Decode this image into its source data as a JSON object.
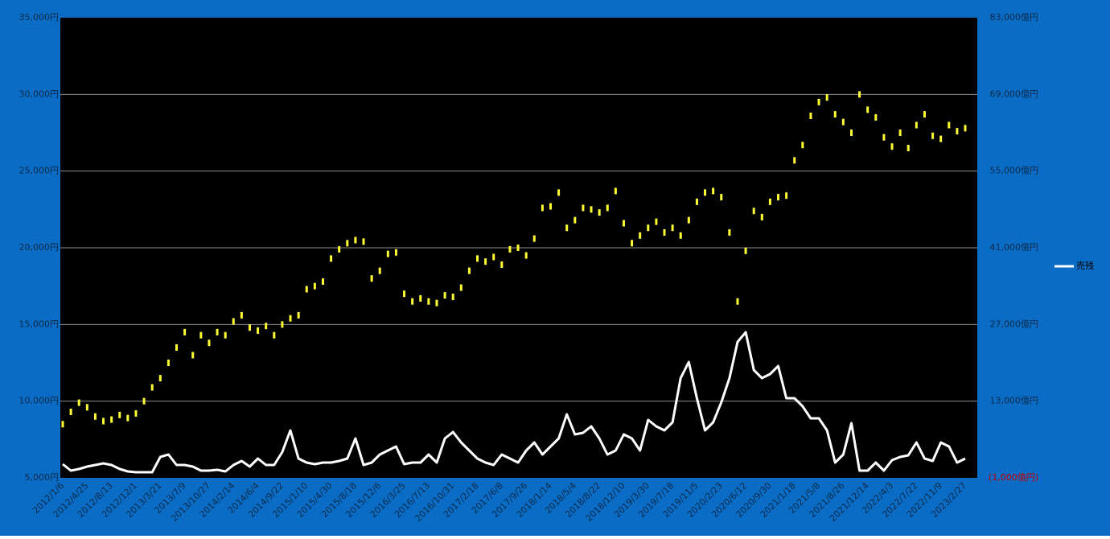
{
  "chart_data": {
    "type": "candle-line",
    "categories": [
      "2012/1/6",
      null,
      null,
      "2012/4/25",
      null,
      null,
      "2012/8/13",
      null,
      null,
      "2012/12/1",
      null,
      null,
      "2013/3/21",
      null,
      null,
      "2013/7/9",
      null,
      null,
      "2013/10/27",
      null,
      null,
      "2014/2/14",
      null,
      null,
      "2014/6/4",
      null,
      null,
      "2014/9/22",
      null,
      null,
      "2015/1/10",
      null,
      null,
      "2015/4/30",
      null,
      null,
      "2015/8/18",
      null,
      null,
      "2015/12/6",
      null,
      null,
      "2016/3/25",
      null,
      null,
      "2016/7/13",
      null,
      null,
      "2016/10/31",
      null,
      null,
      "2017/2/18",
      null,
      null,
      "2017/6/8",
      null,
      null,
      "2017/9/26",
      null,
      null,
      "2018/1/14",
      null,
      null,
      "2018/5/4",
      null,
      null,
      "2018/8/22",
      null,
      null,
      "2018/12/10",
      null,
      null,
      "2019/3/30",
      null,
      null,
      "2019/7/18",
      null,
      null,
      "2019/11/5",
      null,
      null,
      "2020/2/23",
      null,
      null,
      "2020/6/12",
      null,
      null,
      "2020/9/30",
      null,
      null,
      "2021/1/18",
      null,
      null,
      "2021/5/8",
      null,
      null,
      "2021/8/26",
      null,
      null,
      "2021/12/14",
      null,
      null,
      "2022/4/3",
      null,
      null,
      "2022/7/22",
      null,
      null,
      "2022/11/9",
      null,
      null,
      "2023/2/27"
    ],
    "series": [
      {
        "color": "#ffff33",
        "values": [
          8500,
          9300,
          9900,
          9600,
          9000,
          8700,
          8800,
          9100,
          8900,
          9200,
          10000,
          10900,
          11500,
          12500,
          13500,
          14500,
          13000,
          14300,
          13800,
          14500,
          14300,
          15200,
          15600,
          14800,
          14600,
          14900,
          14300,
          15000,
          15400,
          15600,
          17300,
          17500,
          17800,
          19300,
          19900,
          20300,
          20500,
          20400,
          18000,
          18500,
          19600,
          19700,
          17000,
          16500,
          16700,
          16500,
          16400,
          16900,
          16800,
          17400,
          18500,
          19300,
          19100,
          19400,
          18900,
          19900,
          20000,
          19500,
          20600,
          22600,
          22700,
          23600,
          21300,
          21800,
          22600,
          22500,
          22300,
          22600,
          23700,
          21600,
          20300,
          20800,
          21300,
          21700,
          21000,
          21300,
          20800,
          21800,
          23000,
          23600,
          23700,
          23300,
          21000,
          16500,
          19800,
          22400,
          22000,
          23000,
          23300,
          23400,
          25700,
          26700,
          28600,
          29500,
          29800,
          28700,
          28200,
          27500,
          30000,
          29000,
          28500,
          27200,
          26600,
          27500,
          26500,
          28000,
          28700,
          27300,
          27100,
          28000,
          27600,
          27800
        ]
      },
      {
        "name": "売残",
        "color": "#ffffff",
        "axis": "y2",
        "values": [
          1500,
          320,
          620,
          1060,
          1350,
          1640,
          1350,
          620,
          170,
          30,
          30,
          30,
          2820,
          3260,
          1350,
          1350,
          1060,
          320,
          320,
          470,
          170,
          1350,
          2080,
          1060,
          2520,
          1350,
          1350,
          3700,
          7660,
          2520,
          1790,
          1500,
          1790,
          1790,
          2080,
          2520,
          6200,
          1350,
          1790,
          3260,
          3990,
          4730,
          1500,
          1790,
          1790,
          3260,
          1790,
          6200,
          7370,
          5460,
          3990,
          2520,
          1790,
          1350,
          3260,
          2520,
          1790,
          3990,
          5460,
          3260,
          4730,
          6200,
          10600,
          6930,
          7220,
          8400,
          6200,
          3260,
          3990,
          6930,
          6200,
          3990,
          9570,
          8400,
          7660,
          9130,
          17210,
          20150,
          13540,
          7660,
          9130,
          12800,
          17210,
          23820,
          25580,
          18680,
          17210,
          17940,
          19410,
          13540,
          13540,
          12070,
          9870,
          9870,
          7660,
          1790,
          3260,
          8990,
          320,
          320,
          1790,
          320,
          2230,
          2820,
          3110,
          5460,
          2520,
          2080,
          5460,
          4730,
          1790,
          2520
        ]
      }
    ],
    "ylim": [
      5000,
      35000
    ],
    "yticks": [
      {
        "value": 5000,
        "label": "5,000円"
      },
      {
        "value": 10000,
        "label": "10,000円"
      },
      {
        "value": 15000,
        "label": "15,000円"
      },
      {
        "value": 20000,
        "label": "20,000円"
      },
      {
        "value": 25000,
        "label": "25,000円"
      },
      {
        "value": 30000,
        "label": "30,000円"
      },
      {
        "value": 35000,
        "label": "35,000円"
      }
    ],
    "y2lim": [
      -1000,
      83000
    ],
    "y2ticks": [
      {
        "value": -1000,
        "label": "(1,000億円)"
      },
      {
        "value": 13000,
        "label": "13,000億円"
      },
      {
        "value": 27000,
        "label": "27,000億円"
      },
      {
        "value": 41000,
        "label": "41,000億円"
      },
      {
        "value": 55000,
        "label": "55,000億円"
      },
      {
        "value": 69000,
        "label": "69,000億円"
      },
      {
        "value": 83000,
        "label": "83,000億円"
      }
    ],
    "grid": true,
    "legend": "right"
  }
}
